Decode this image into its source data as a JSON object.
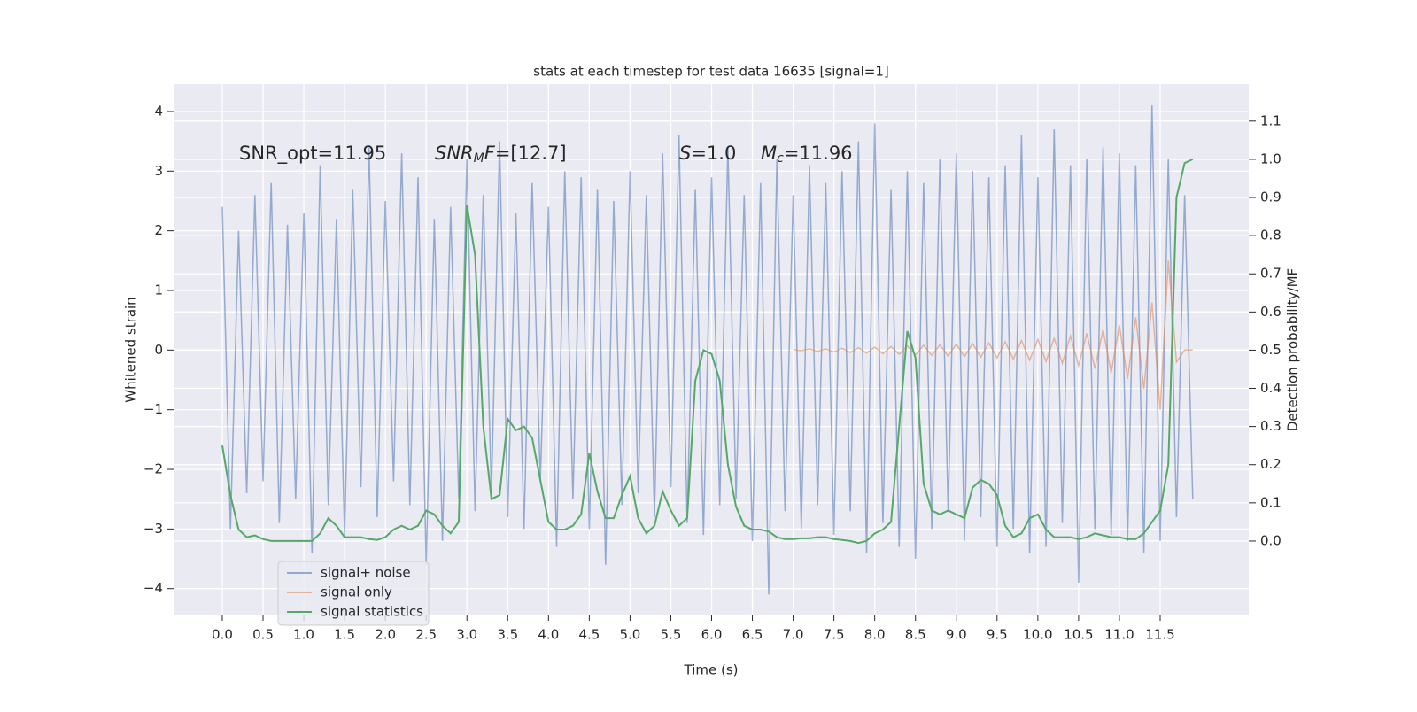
{
  "chart_data": {
    "type": "line",
    "title": "stats at each timestep for test data 16635 [signal=1]",
    "xlabel": "Time (s)",
    "ylabel": "Whitened strain",
    "y2label": "Detection probability/MF",
    "grid": true,
    "legend": "lower left",
    "xlim": [
      -0.586,
      12.586
    ],
    "ylim": [
      -4.45,
      4.46
    ],
    "y2lim": [
      -0.195,
      1.197
    ],
    "xticks": [
      {
        "value": 0,
        "label": "0.0"
      },
      0.5,
      {
        "value": 1,
        "label": "1.0"
      },
      1.5,
      {
        "value": 2,
        "label": "2.0"
      },
      2.5,
      {
        "value": 3,
        "label": "3.0"
      },
      3.5,
      {
        "value": 4,
        "label": "4.0"
      },
      4.5,
      {
        "value": 5,
        "label": "5.0"
      },
      5.5,
      {
        "value": 6,
        "label": "6.0"
      },
      6.5,
      {
        "value": 7,
        "label": "7.0"
      },
      7.5,
      {
        "value": 8,
        "label": "8.0"
      },
      8.5,
      {
        "value": 9,
        "label": "9.0"
      },
      9.5,
      {
        "value": 10,
        "label": "10.0"
      },
      10.5,
      {
        "value": 11,
        "label": "11.0"
      },
      11.5
    ],
    "yticks": [
      {
        "value": -4,
        "label": "−4"
      },
      {
        "value": -3,
        "label": "−3"
      },
      {
        "value": -2,
        "label": "−2"
      },
      {
        "value": -1,
        "label": "−1"
      },
      0,
      1,
      2,
      3,
      4
    ],
    "y2ticks": [
      {
        "value": 0,
        "label": "0.0"
      },
      0.1,
      0.2,
      0.3,
      0.4,
      0.5,
      0.6,
      0.7,
      0.8,
      0.9,
      {
        "value": 1,
        "label": "1.0"
      },
      1.1
    ],
    "annotations": [
      [
        {
          "text": "SNR_opt=11.95"
        }
      ],
      [
        {
          "text": "SNR",
          "italic": true
        },
        {
          "text": "M",
          "italic": true,
          "sub": true
        },
        {
          "text": "F",
          "italic": true
        },
        {
          "text": "=[12.7]"
        }
      ],
      [
        {
          "text": "S",
          "italic": true
        },
        {
          "text": "=1.0"
        }
      ],
      [
        {
          "text": "M",
          "italic": true
        },
        {
          "text": "c",
          "italic": true,
          "sub": true
        },
        {
          "text": "=11.96"
        }
      ]
    ],
    "x": [
      0.0,
      0.1,
      0.2,
      0.3,
      0.4,
      0.5,
      0.6,
      0.7,
      0.8,
      0.9,
      1.0,
      1.1,
      1.2,
      1.3,
      1.4,
      1.5,
      1.6,
      1.7,
      1.8,
      1.9,
      2.0,
      2.1,
      2.2,
      2.3,
      2.4,
      2.5,
      2.6,
      2.7,
      2.8,
      2.9,
      3.0,
      3.1,
      3.2,
      3.3,
      3.4,
      3.5,
      3.6,
      3.7,
      3.8,
      3.9,
      4.0,
      4.1,
      4.2,
      4.3,
      4.4,
      4.5,
      4.6,
      4.7,
      4.8,
      4.9,
      5.0,
      5.1,
      5.2,
      5.3,
      5.4,
      5.5,
      5.6,
      5.7,
      5.8,
      5.9,
      6.0,
      6.1,
      6.2,
      6.3,
      6.4,
      6.5,
      6.6,
      6.7,
      6.8,
      6.9,
      7.0,
      7.1,
      7.2,
      7.3,
      7.4,
      7.5,
      7.6,
      7.7,
      7.8,
      7.9,
      8.0,
      8.1,
      8.2,
      8.3,
      8.4,
      8.5,
      8.6,
      8.7,
      8.8,
      8.9,
      9.0,
      9.1,
      9.2,
      9.3,
      9.4,
      9.5,
      9.6,
      9.7,
      9.8,
      9.9,
      10.0,
      10.1,
      10.2,
      10.3,
      10.4,
      10.5,
      10.6,
      10.7,
      10.8,
      10.9,
      11.0,
      11.1,
      11.2,
      11.3,
      11.4,
      11.5,
      11.6,
      11.7,
      11.8,
      11.9
    ],
    "series": [
      {
        "name": "signal+ noise",
        "color": "#4c72b0",
        "values": [
          2.4,
          -3.0,
          2.0,
          -2.4,
          2.6,
          -2.2,
          2.8,
          -2.9,
          2.1,
          -2.5,
          2.3,
          -3.4,
          3.1,
          -2.6,
          2.2,
          -3.1,
          2.7,
          -2.3,
          3.4,
          -2.8,
          2.5,
          -2.2,
          3.3,
          -2.6,
          2.9,
          -3.6,
          2.2,
          -3.2,
          2.4,
          -2.5,
          3.2,
          -2.7,
          2.6,
          -2.4,
          3.5,
          -2.8,
          2.3,
          -3.0,
          2.8,
          -2.2,
          2.4,
          -3.3,
          3.0,
          -2.5,
          2.9,
          -3.0,
          2.7,
          -3.6,
          2.5,
          -2.6,
          3.0,
          -2.4,
          2.6,
          -2.8,
          3.3,
          -2.3,
          3.6,
          -2.9,
          2.7,
          -3.1,
          2.9,
          -2.6,
          3.4,
          -2.5,
          2.6,
          -3.2,
          2.8,
          -4.1,
          3.2,
          -2.7,
          2.6,
          -3.0,
          3.1,
          -2.6,
          2.8,
          -3.1,
          3.0,
          -2.7,
          3.5,
          -3.4,
          3.8,
          -2.9,
          2.7,
          -3.3,
          3.0,
          -3.5,
          2.8,
          -3.0,
          3.2,
          -2.7,
          3.3,
          -3.2,
          3.0,
          -2.8,
          2.9,
          -3.3,
          3.1,
          -3.0,
          3.6,
          -3.4,
          2.9,
          -3.3,
          3.7,
          -2.9,
          3.1,
          -3.9,
          3.2,
          -3.0,
          3.4,
          -3.1,
          3.3,
          -3.2,
          3.1,
          -3.4,
          4.1,
          -3.2,
          3.2,
          -2.8,
          2.6,
          -2.5
        ]
      },
      {
        "name": "signal only",
        "color": "#dd8452",
        "x": [
          7.0,
          7.1,
          7.2,
          7.3,
          7.4,
          7.5,
          7.6,
          7.7,
          7.8,
          7.9,
          8.0,
          8.1,
          8.2,
          8.3,
          8.4,
          8.5,
          8.6,
          8.7,
          8.8,
          8.9,
          9.0,
          9.1,
          9.2,
          9.3,
          9.4,
          9.5,
          9.6,
          9.7,
          9.8,
          9.9,
          10.0,
          10.1,
          10.2,
          10.3,
          10.4,
          10.5,
          10.6,
          10.7,
          10.8,
          10.9,
          11.0,
          11.1,
          11.2,
          11.3,
          11.4,
          11.5,
          11.6,
          11.7,
          11.8,
          11.9
        ],
        "values": [
          0.01,
          -0.01,
          0.02,
          -0.02,
          0.02,
          -0.03,
          0.03,
          -0.04,
          0.04,
          -0.05,
          0.05,
          -0.06,
          0.06,
          -0.07,
          0.07,
          -0.08,
          0.08,
          -0.09,
          0.09,
          -0.1,
          0.1,
          -0.11,
          0.11,
          -0.12,
          0.12,
          -0.13,
          0.14,
          -0.15,
          0.16,
          -0.17,
          0.18,
          -0.19,
          0.2,
          -0.22,
          0.24,
          -0.26,
          0.28,
          -0.31,
          0.34,
          -0.38,
          0.42,
          -0.48,
          0.55,
          -0.65,
          0.8,
          -1.0,
          1.5,
          -0.2,
          0.0,
          0.0
        ]
      },
      {
        "name": "signal statistics",
        "color": "#55a868",
        "axis": "y2",
        "values": [
          0.25,
          0.12,
          0.03,
          0.01,
          0.015,
          0.005,
          0.0,
          0.0,
          0.0,
          0.0,
          0.0,
          0.0,
          0.02,
          0.06,
          0.04,
          0.01,
          0.01,
          0.01,
          0.005,
          0.003,
          0.01,
          0.03,
          0.04,
          0.03,
          0.04,
          0.08,
          0.07,
          0.04,
          0.02,
          0.05,
          0.88,
          0.75,
          0.3,
          0.11,
          0.12,
          0.32,
          0.29,
          0.3,
          0.27,
          0.16,
          0.05,
          0.03,
          0.03,
          0.04,
          0.07,
          0.23,
          0.13,
          0.06,
          0.06,
          0.12,
          0.17,
          0.06,
          0.02,
          0.04,
          0.13,
          0.08,
          0.04,
          0.06,
          0.42,
          0.5,
          0.49,
          0.42,
          0.2,
          0.09,
          0.04,
          0.03,
          0.03,
          0.025,
          0.01,
          0.005,
          0.005,
          0.007,
          0.007,
          0.01,
          0.01,
          0.005,
          0.003,
          0.0,
          -0.005,
          0.0,
          0.02,
          0.03,
          0.05,
          0.3,
          0.55,
          0.48,
          0.15,
          0.08,
          0.07,
          0.08,
          0.07,
          0.06,
          0.14,
          0.16,
          0.15,
          0.12,
          0.04,
          0.01,
          0.02,
          0.06,
          0.07,
          0.03,
          0.01,
          0.01,
          0.01,
          0.005,
          0.01,
          0.02,
          0.015,
          0.01,
          0.01,
          0.005,
          0.005,
          0.02,
          0.05,
          0.08,
          0.2,
          0.9,
          0.99,
          1.0
        ]
      }
    ]
  }
}
